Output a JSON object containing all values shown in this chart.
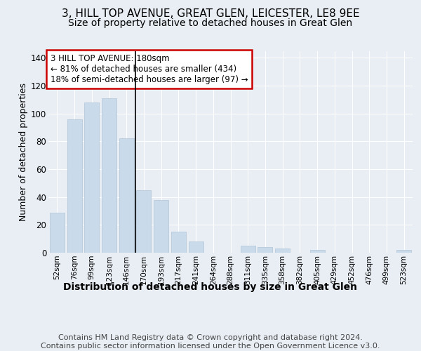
{
  "title": "3, HILL TOP AVENUE, GREAT GLEN, LEICESTER, LE8 9EE",
  "subtitle": "Size of property relative to detached houses in Great Glen",
  "xlabel": "Distribution of detached houses by size in Great Glen",
  "ylabel": "Number of detached properties",
  "categories": [
    "52sqm",
    "76sqm",
    "99sqm",
    "123sqm",
    "146sqm",
    "170sqm",
    "193sqm",
    "217sqm",
    "241sqm",
    "264sqm",
    "288sqm",
    "311sqm",
    "335sqm",
    "358sqm",
    "382sqm",
    "405sqm",
    "429sqm",
    "452sqm",
    "476sqm",
    "499sqm",
    "523sqm"
  ],
  "values": [
    29,
    96,
    108,
    111,
    82,
    45,
    38,
    15,
    8,
    0,
    0,
    5,
    4,
    3,
    0,
    2,
    0,
    0,
    0,
    0,
    2
  ],
  "bar_color": "#c9daea",
  "bar_edge_color": "#b0c4d8",
  "annotation_box_text": "3 HILL TOP AVENUE: 180sqm\n← 81% of detached houses are smaller (434)\n18% of semi-detached houses are larger (97) →",
  "annotation_box_edge_color": "#cc0000",
  "annotation_box_face_color": "#ffffff",
  "vertical_line_x": 4.5,
  "ylim": [
    0,
    145
  ],
  "yticks": [
    0,
    20,
    40,
    60,
    80,
    100,
    120,
    140
  ],
  "background_color": "#e8eef4",
  "plot_bg_color": "#e8eef4",
  "grid_color": "#ffffff",
  "footer_text": "Contains HM Land Registry data © Crown copyright and database right 2024.\nContains public sector information licensed under the Open Government Licence v3.0.",
  "title_fontsize": 11,
  "subtitle_fontsize": 10,
  "xlabel_fontsize": 10,
  "ylabel_fontsize": 9,
  "footer_fontsize": 8,
  "annotation_fontsize": 8.5
}
